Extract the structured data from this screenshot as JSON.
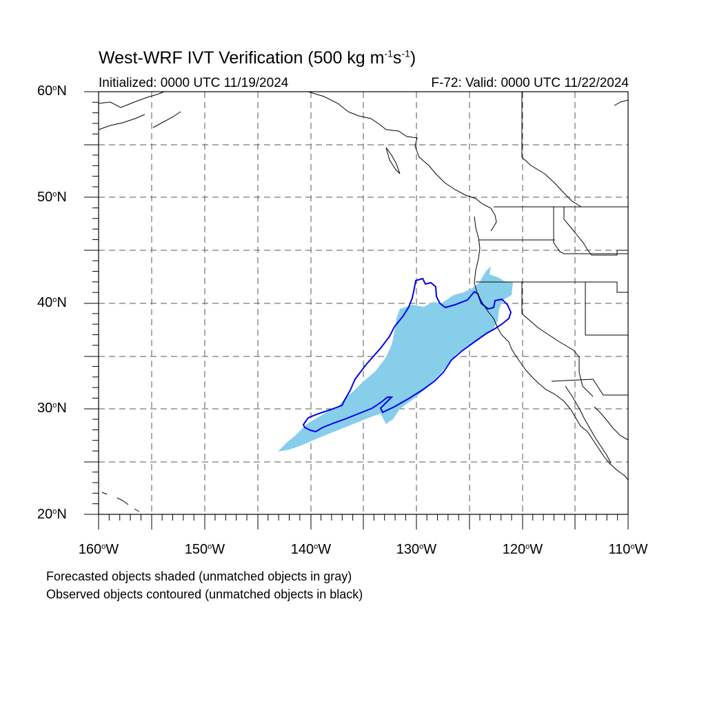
{
  "title": {
    "main": "West-WRF IVT Verification (500 kg m",
    "sup1": "-1",
    "mid": "s",
    "sup2": "-1",
    "close": ")"
  },
  "subtitle": {
    "initialized": "Initialized: 0000 UTC 11/19/2024",
    "valid": "F-72: Valid: 0000 UTC 11/22/2024"
  },
  "map": {
    "lon_range": [
      -160,
      -110
    ],
    "lat_range": [
      20,
      60
    ],
    "lat_ticks": [
      {
        "text": "60",
        "suffix": "N"
      },
      {
        "text": "50",
        "suffix": "N"
      },
      {
        "text": "40",
        "suffix": "N"
      },
      {
        "text": "30",
        "suffix": "N"
      },
      {
        "text": "20",
        "suffix": "N"
      }
    ],
    "lon_ticks": [
      {
        "text": "160",
        "suffix": "W"
      },
      {
        "text": "150",
        "suffix": "W"
      },
      {
        "text": "140",
        "suffix": "W"
      },
      {
        "text": "130",
        "suffix": "W"
      },
      {
        "text": "120",
        "suffix": "W"
      },
      {
        "text": "110",
        "suffix": "W"
      }
    ],
    "grid_spacing_deg": 5,
    "forecast_color": "#87ceeb",
    "observed_color": "#0000ee"
  },
  "legend": {
    "line1": "Forecasted objects shaded (unmatched objects in gray)",
    "line2": "Observed objects contoured (unmatched objects in black)"
  }
}
